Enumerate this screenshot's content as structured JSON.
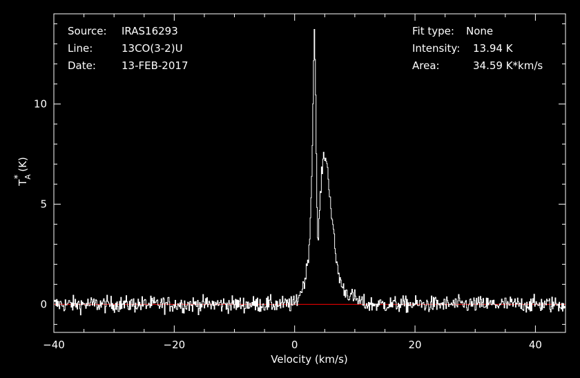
{
  "info_left": [
    {
      "key": "Source:",
      "value": "IRAS16293"
    },
    {
      "key": "Line:",
      "value": "13CO(3-2)U"
    },
    {
      "key": "Date:",
      "value": "13-FEB-2017"
    }
  ],
  "info_right": [
    {
      "key": "Fit type:",
      "value": "None"
    },
    {
      "key": "Intensity:",
      "value": "13.94 K"
    },
    {
      "key": "Area:",
      "value": "34.59 K*km/s"
    }
  ],
  "colors": {
    "background": "#000000",
    "axes": "#ffffff",
    "spectrum": "#ffffff",
    "baseline": "#ff0000"
  },
  "chart_data": {
    "type": "line",
    "xlabel": "Velocity (km/s)",
    "ylabel": "T_A^* (K)",
    "ylabel_parts": {
      "main": "T",
      "sub": "A",
      "sup": "*",
      "unit": "(K)"
    },
    "xlim": [
      -40,
      45
    ],
    "ylim": [
      -1.4,
      14.5
    ],
    "x_ticks": [
      -40,
      -20,
      0,
      20,
      40
    ],
    "x_tick_labels": [
      "−40",
      "−20",
      "0",
      "20",
      "40"
    ],
    "y_ticks": [
      0,
      5,
      10
    ],
    "y_tick_labels": [
      "0",
      "5",
      "10"
    ],
    "baseline": 0,
    "grid": false,
    "channel_width": 0.11,
    "noise_rms": 0.2,
    "series": [
      {
        "points": [
          [
            -40,
            0.0
          ],
          [
            0,
            0.0
          ],
          [
            0.5,
            0.3
          ],
          [
            1.0,
            0.6
          ],
          [
            1.5,
            1.0
          ],
          [
            2.0,
            1.7
          ],
          [
            2.5,
            3.2
          ],
          [
            2.9,
            7.0
          ],
          [
            3.2,
            12.5
          ],
          [
            3.3,
            13.94
          ],
          [
            3.45,
            12.0
          ],
          [
            3.7,
            5.0
          ],
          [
            3.85,
            2.8
          ],
          [
            4.0,
            3.8
          ],
          [
            4.3,
            5.5
          ],
          [
            4.6,
            6.8
          ],
          [
            4.9,
            7.55
          ],
          [
            5.2,
            7.3
          ],
          [
            5.6,
            6.4
          ],
          [
            6.0,
            5.0
          ],
          [
            6.5,
            3.4
          ],
          [
            7.0,
            2.0
          ],
          [
            7.5,
            1.3
          ],
          [
            8.0,
            0.8
          ],
          [
            9.0,
            0.5
          ],
          [
            10.0,
            0.3
          ],
          [
            11.0,
            0.1
          ],
          [
            12.0,
            0.0
          ],
          [
            45,
            0.0
          ]
        ]
      }
    ]
  }
}
